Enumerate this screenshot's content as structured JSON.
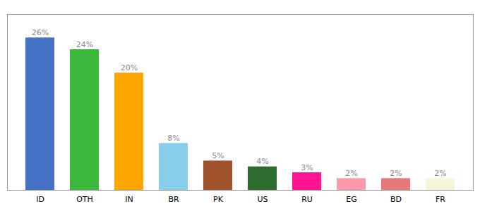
{
  "chart_data": {
    "type": "bar",
    "categories": [
      "ID",
      "OTH",
      "IN",
      "BR",
      "PK",
      "US",
      "RU",
      "EG",
      "BD",
      "FR"
    ],
    "values": [
      26,
      24,
      20,
      8,
      5,
      4,
      3,
      2,
      2,
      2
    ],
    "value_labels": [
      "26%",
      "24%",
      "20%",
      "8%",
      "5%",
      "4%",
      "3%",
      "2%",
      "2%",
      "2%"
    ],
    "colors": [
      "#4472c4",
      "#3cb83c",
      "#ffa500",
      "#87ceeb",
      "#a0522d",
      "#2e6b2e",
      "#ff1493",
      "#ff99aa",
      "#e87878",
      "#f5f5dc"
    ],
    "ylim": [
      0,
      30
    ],
    "data_labels": true,
    "tick_labels": "x",
    "grid": false
  }
}
